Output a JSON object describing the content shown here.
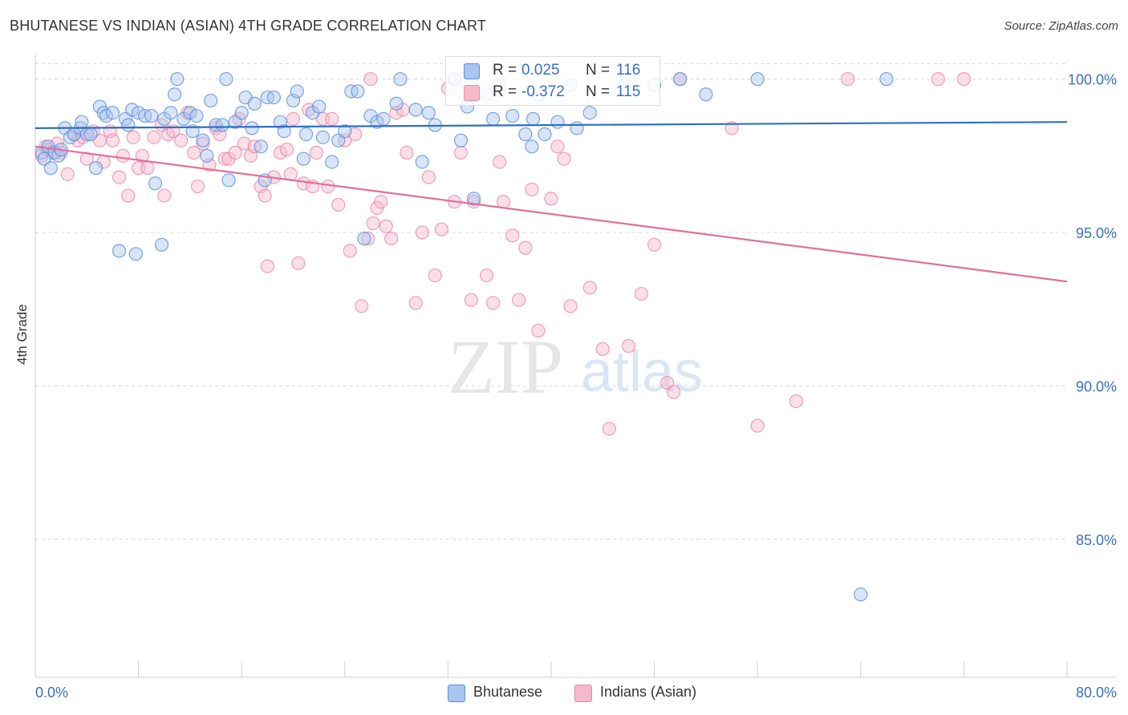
{
  "title": "BHUTANESE VS INDIAN (ASIAN) 4TH GRADE CORRELATION CHART",
  "source": "Source: ZipAtlas.com",
  "watermark_zip": "ZIP",
  "watermark_atlas": "atlas",
  "legend_top": {
    "bhutanese": {
      "r_label": "R =",
      "r_value": "0.025",
      "n_label": "N =",
      "n_value": "116"
    },
    "indians": {
      "r_label": "R =",
      "r_value": "-0.372",
      "n_label": "N =",
      "n_value": "115"
    }
  },
  "legend_bottom": {
    "bhutanese": "Bhutanese",
    "indians": "Indians (Asian)"
  },
  "colors": {
    "blue_fill": "#a9c6f0",
    "blue_stroke": "#5b8fd6",
    "blue_line": "#2f6fc6",
    "pink_fill": "#f6b8cb",
    "pink_stroke": "#e88aa8",
    "pink_line": "#e0709a",
    "tick_text": "#3a6fc0",
    "grid": "#d8d8d8"
  },
  "chart_data": {
    "type": "scatter",
    "title": "BHUTANESE VS INDIAN (ASIAN) 4TH GRADE CORRELATION CHART",
    "xlabel": "",
    "ylabel": "4th Grade",
    "xlim": [
      0,
      80
    ],
    "ylim": [
      80.5,
      100.8
    ],
    "x_tick_labels": [
      "0.0%",
      "80.0%"
    ],
    "y_ticks": [
      85,
      90,
      95,
      100
    ],
    "y_tick_labels": [
      "85.0%",
      "90.0%",
      "95.0%",
      "100.0%"
    ],
    "series": [
      {
        "name": "Bhutanese",
        "r": 0.025,
        "n": 116,
        "trend": [
          [
            0,
            98.4
          ],
          [
            80,
            98.6
          ]
        ],
        "points": [
          [
            0.5,
            97.6
          ],
          [
            0.7,
            97.4
          ],
          [
            1.0,
            97.8
          ],
          [
            1.2,
            97.1
          ],
          [
            1.5,
            97.6
          ],
          [
            1.8,
            97.5
          ],
          [
            2.0,
            97.7
          ],
          [
            2.3,
            98.4
          ],
          [
            2.7,
            98.1
          ],
          [
            3.0,
            98.2
          ],
          [
            3.5,
            98.4
          ],
          [
            3.6,
            98.6
          ],
          [
            4.0,
            98.2
          ],
          [
            4.3,
            98.2
          ],
          [
            4.7,
            97.1
          ],
          [
            5.0,
            99.1
          ],
          [
            5.3,
            98.9
          ],
          [
            5.5,
            98.8
          ],
          [
            6.0,
            98.9
          ],
          [
            6.5,
            94.4
          ],
          [
            7.0,
            98.7
          ],
          [
            7.2,
            98.5
          ],
          [
            7.5,
            99.0
          ],
          [
            7.8,
            94.3
          ],
          [
            8.0,
            98.9
          ],
          [
            8.5,
            98.8
          ],
          [
            9.0,
            98.8
          ],
          [
            9.3,
            96.6
          ],
          [
            9.8,
            94.6
          ],
          [
            10.0,
            98.7
          ],
          [
            10.5,
            98.9
          ],
          [
            10.8,
            99.5
          ],
          [
            11.0,
            100.0
          ],
          [
            11.5,
            98.7
          ],
          [
            12.0,
            98.9
          ],
          [
            12.2,
            98.3
          ],
          [
            12.5,
            98.8
          ],
          [
            13.0,
            98.0
          ],
          [
            13.3,
            97.5
          ],
          [
            13.6,
            99.3
          ],
          [
            14.0,
            98.5
          ],
          [
            14.5,
            98.5
          ],
          [
            14.8,
            100.0
          ],
          [
            15.0,
            96.7
          ],
          [
            15.5,
            98.6
          ],
          [
            16.0,
            98.9
          ],
          [
            16.3,
            99.4
          ],
          [
            16.8,
            98.4
          ],
          [
            17.0,
            99.2
          ],
          [
            17.5,
            97.8
          ],
          [
            17.8,
            96.7
          ],
          [
            18.0,
            99.4
          ],
          [
            18.5,
            99.4
          ],
          [
            19.0,
            98.6
          ],
          [
            19.3,
            98.3
          ],
          [
            20.0,
            99.3
          ],
          [
            20.3,
            99.6
          ],
          [
            20.8,
            97.4
          ],
          [
            21.0,
            98.2
          ],
          [
            21.5,
            98.9
          ],
          [
            22.0,
            99.1
          ],
          [
            22.3,
            98.1
          ],
          [
            23.0,
            97.3
          ],
          [
            23.5,
            98.0
          ],
          [
            24.0,
            98.3
          ],
          [
            24.5,
            99.6
          ],
          [
            25.0,
            99.6
          ],
          [
            25.5,
            94.8
          ],
          [
            26.0,
            98.8
          ],
          [
            26.5,
            98.6
          ],
          [
            27.0,
            98.7
          ],
          [
            28.0,
            99.2
          ],
          [
            28.3,
            100.0
          ],
          [
            29.5,
            99.0
          ],
          [
            30.0,
            97.3
          ],
          [
            30.5,
            98.9
          ],
          [
            31.0,
            98.5
          ],
          [
            32.5,
            100.0
          ],
          [
            33.0,
            98.0
          ],
          [
            33.5,
            99.1
          ],
          [
            34.0,
            96.1
          ],
          [
            35.0,
            99.5
          ],
          [
            35.5,
            98.7
          ],
          [
            36.0,
            99.8
          ],
          [
            37.0,
            98.8
          ],
          [
            38.0,
            98.2
          ],
          [
            38.5,
            97.8
          ],
          [
            38.6,
            98.7
          ],
          [
            39.0,
            99.5
          ],
          [
            39.5,
            98.2
          ],
          [
            40.5,
            98.6
          ],
          [
            41.5,
            99.8
          ],
          [
            42.0,
            98.4
          ],
          [
            43.0,
            98.9
          ],
          [
            46.0,
            100.0
          ],
          [
            48.0,
            99.8
          ],
          [
            50.0,
            100.0
          ],
          [
            52.0,
            99.5
          ],
          [
            56.0,
            100.0
          ],
          [
            64.0,
            83.2
          ],
          [
            66.0,
            100.0
          ]
        ]
      },
      {
        "name": "Indians (Asian)",
        "r": -0.372,
        "n": 115,
        "trend": [
          [
            0,
            97.8
          ],
          [
            80,
            93.4
          ]
        ],
        "points": [
          [
            0.5,
            97.5
          ],
          [
            0.8,
            97.8
          ],
          [
            1.0,
            97.7
          ],
          [
            1.3,
            97.6
          ],
          [
            1.7,
            97.9
          ],
          [
            2.0,
            97.6
          ],
          [
            2.5,
            96.9
          ],
          [
            3.0,
            98.2
          ],
          [
            3.3,
            98.0
          ],
          [
            3.7,
            98.1
          ],
          [
            4.0,
            97.4
          ],
          [
            4.5,
            98.3
          ],
          [
            5.0,
            98.0
          ],
          [
            5.3,
            97.3
          ],
          [
            5.8,
            98.3
          ],
          [
            6.0,
            98.0
          ],
          [
            6.5,
            96.8
          ],
          [
            6.8,
            97.5
          ],
          [
            7.2,
            96.2
          ],
          [
            7.6,
            98.1
          ],
          [
            8.0,
            97.1
          ],
          [
            8.3,
            97.5
          ],
          [
            8.7,
            97.1
          ],
          [
            9.2,
            98.1
          ],
          [
            9.8,
            98.5
          ],
          [
            10.0,
            96.2
          ],
          [
            10.3,
            98.2
          ],
          [
            10.7,
            98.3
          ],
          [
            11.3,
            98.0
          ],
          [
            11.8,
            98.9
          ],
          [
            12.3,
            97.6
          ],
          [
            12.6,
            96.5
          ],
          [
            13.0,
            97.9
          ],
          [
            13.5,
            97.2
          ],
          [
            14.0,
            98.4
          ],
          [
            14.3,
            98.2
          ],
          [
            14.7,
            97.4
          ],
          [
            15.0,
            97.4
          ],
          [
            15.5,
            97.6
          ],
          [
            15.8,
            98.7
          ],
          [
            16.2,
            97.9
          ],
          [
            16.7,
            97.5
          ],
          [
            17.0,
            97.8
          ],
          [
            17.5,
            96.5
          ],
          [
            17.8,
            96.2
          ],
          [
            18.0,
            93.9
          ],
          [
            18.5,
            96.8
          ],
          [
            19.0,
            97.6
          ],
          [
            19.5,
            97.7
          ],
          [
            19.8,
            96.9
          ],
          [
            20.0,
            98.7
          ],
          [
            20.4,
            94.0
          ],
          [
            20.8,
            96.6
          ],
          [
            21.2,
            99.0
          ],
          [
            21.5,
            96.5
          ],
          [
            21.8,
            97.6
          ],
          [
            22.3,
            98.7
          ],
          [
            22.7,
            96.5
          ],
          [
            23.0,
            98.7
          ],
          [
            23.5,
            95.9
          ],
          [
            24.0,
            98.0
          ],
          [
            24.4,
            94.4
          ],
          [
            24.8,
            98.2
          ],
          [
            25.3,
            92.6
          ],
          [
            25.8,
            94.8
          ],
          [
            26.2,
            95.3
          ],
          [
            26.5,
            95.8
          ],
          [
            26.8,
            96.0
          ],
          [
            27.2,
            95.2
          ],
          [
            27.6,
            94.8
          ],
          [
            28.0,
            98.9
          ],
          [
            28.5,
            99.0
          ],
          [
            28.8,
            97.6
          ],
          [
            29.5,
            92.7
          ],
          [
            30.0,
            95.0
          ],
          [
            30.5,
            96.8
          ],
          [
            31.0,
            93.6
          ],
          [
            31.5,
            95.1
          ],
          [
            32.0,
            99.7
          ],
          [
            32.5,
            96.0
          ],
          [
            33.0,
            97.6
          ],
          [
            34.0,
            96.0
          ],
          [
            35.0,
            93.6
          ],
          [
            35.5,
            92.7
          ],
          [
            36.0,
            97.3
          ],
          [
            36.3,
            96.0
          ],
          [
            37.0,
            94.9
          ],
          [
            37.5,
            92.8
          ],
          [
            38.0,
            94.5
          ],
          [
            38.5,
            96.4
          ],
          [
            39.0,
            91.8
          ],
          [
            40.0,
            96.1
          ],
          [
            40.5,
            97.8
          ],
          [
            41.0,
            97.4
          ],
          [
            41.5,
            92.6
          ],
          [
            43.0,
            93.2
          ],
          [
            44.0,
            91.2
          ],
          [
            44.5,
            88.6
          ],
          [
            46.0,
            91.3
          ],
          [
            47.0,
            93.0
          ],
          [
            48.0,
            94.6
          ],
          [
            49.0,
            90.1
          ],
          [
            49.5,
            89.8
          ],
          [
            50.0,
            100.0
          ],
          [
            54.0,
            98.4
          ],
          [
            56.0,
            88.7
          ],
          [
            59.0,
            89.5
          ],
          [
            63.0,
            100.0
          ],
          [
            70.0,
            100.0
          ],
          [
            72.0,
            100.0
          ],
          [
            33.8,
            92.8
          ],
          [
            26.0,
            100.0
          ],
          [
            33.0,
            100.0
          ]
        ]
      }
    ]
  }
}
